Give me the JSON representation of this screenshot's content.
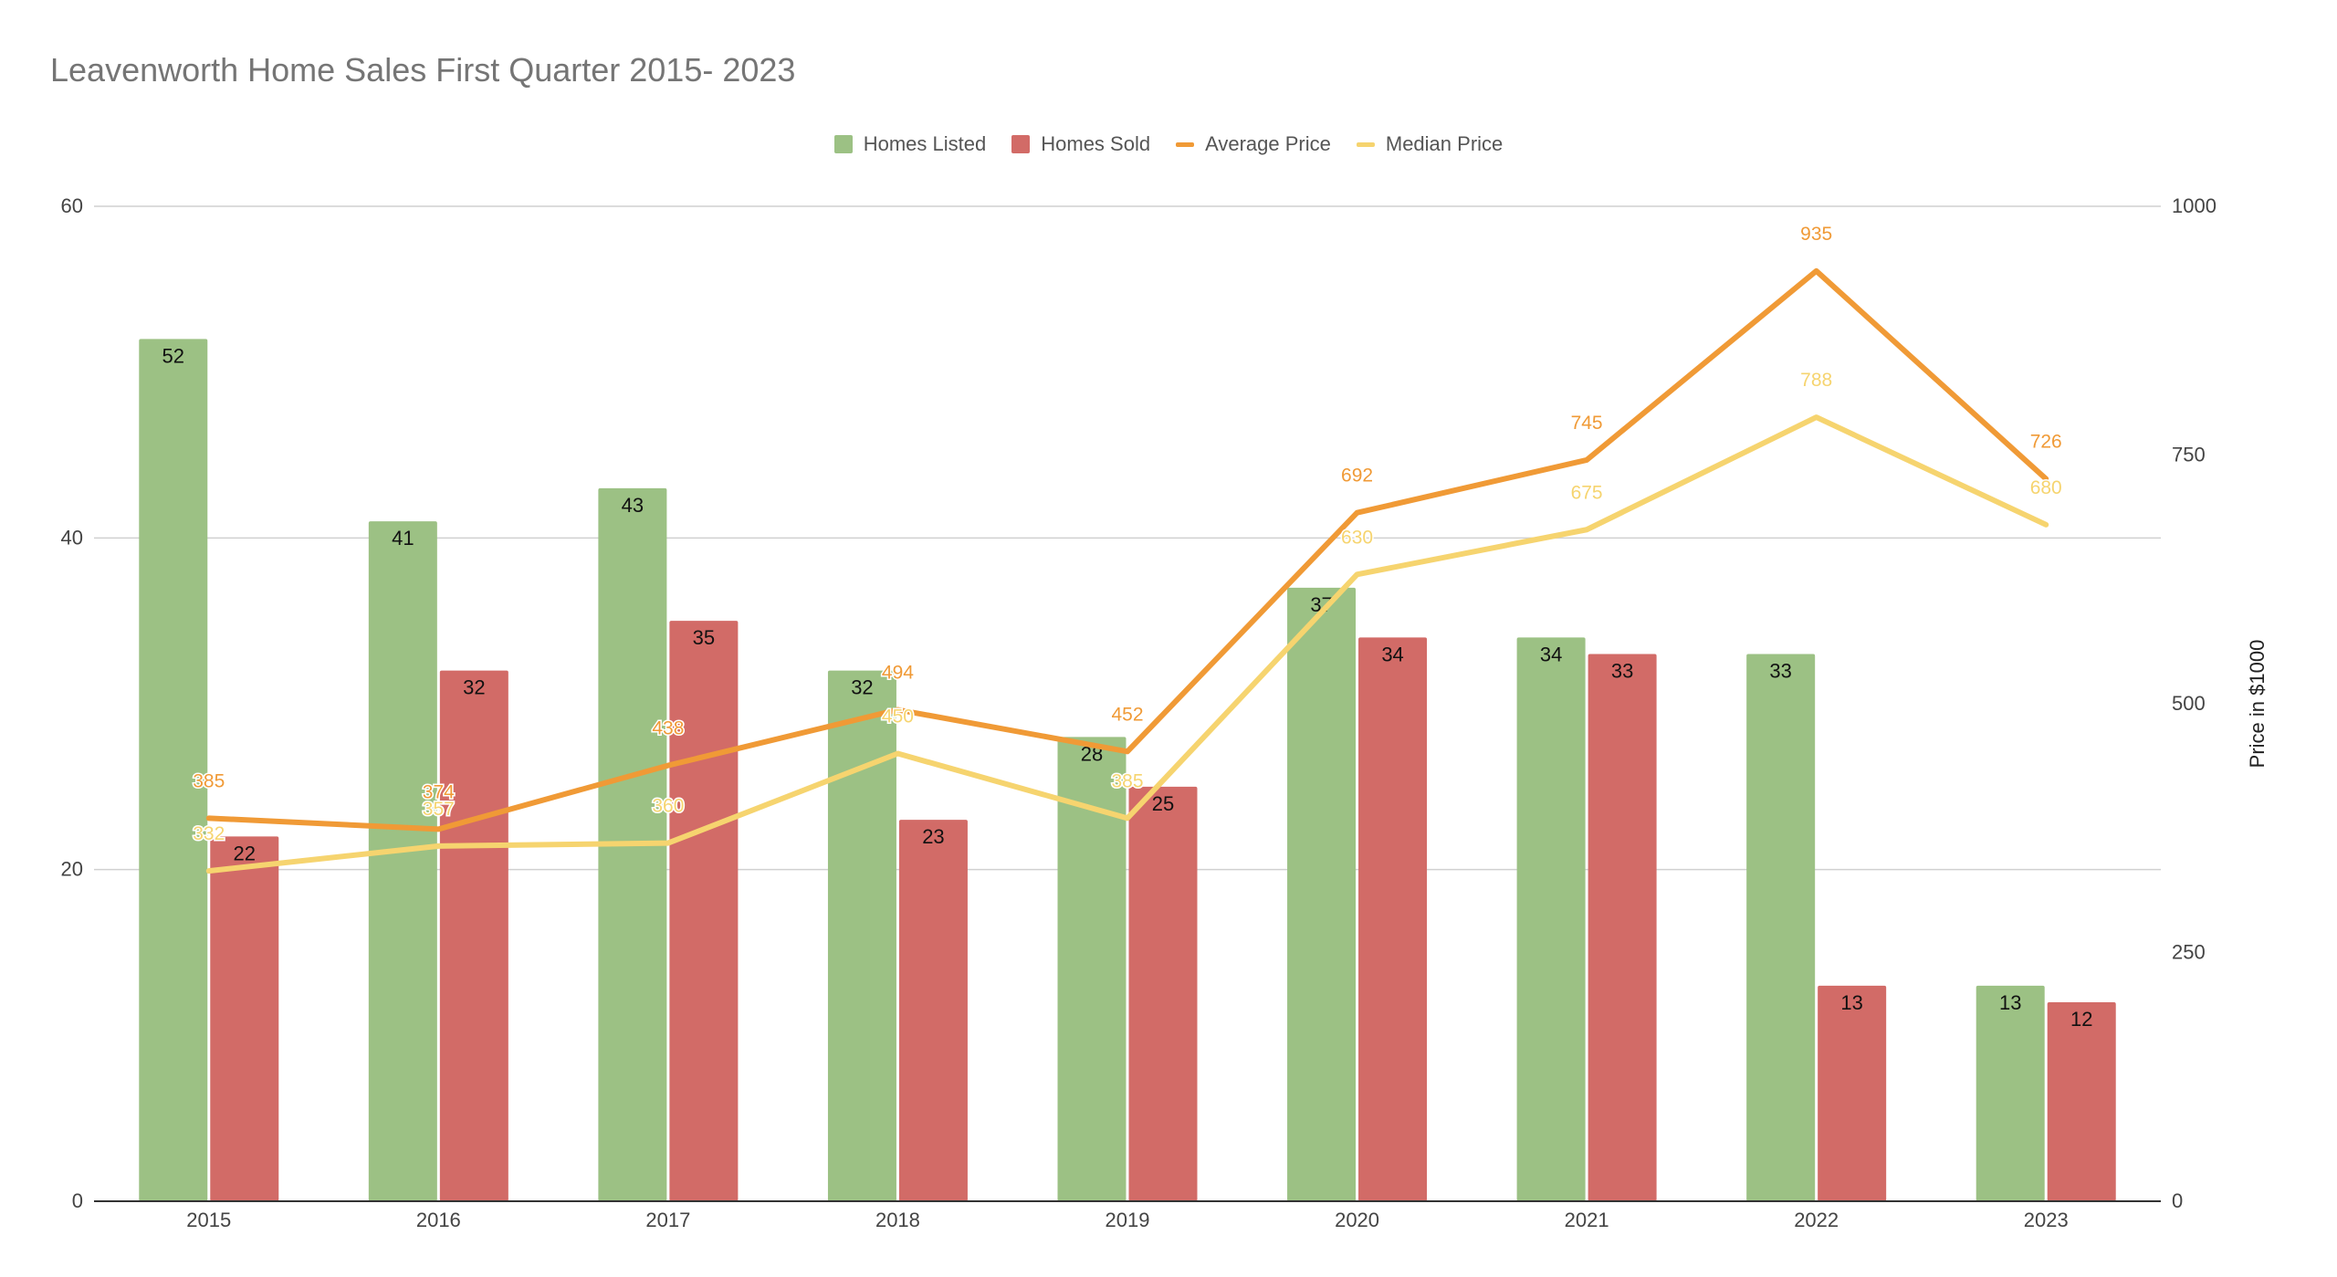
{
  "chart_data": {
    "type": "bar",
    "title": "Leavenworth Home Sales First Quarter 2015- 2023",
    "categories": [
      "2015",
      "2016",
      "2017",
      "2018",
      "2019",
      "2020",
      "2021",
      "2022",
      "2023"
    ],
    "series": [
      {
        "name": "Homes Listed",
        "type": "bar",
        "axis": "left",
        "color": "#9CC184",
        "values": [
          52,
          41,
          43,
          32,
          28,
          37,
          34,
          33,
          13
        ]
      },
      {
        "name": "Homes Sold",
        "type": "bar",
        "axis": "left",
        "color": "#D26B67",
        "values": [
          22,
          32,
          35,
          23,
          25,
          34,
          33,
          13,
          12
        ]
      },
      {
        "name": "Average Price",
        "type": "line",
        "axis": "right",
        "color": "#F09A36",
        "values": [
          385,
          374,
          438,
          494,
          452,
          692,
          745,
          935,
          726
        ]
      },
      {
        "name": "Median Price",
        "type": "line",
        "axis": "right",
        "color": "#F6D46F",
        "values": [
          332,
          357,
          360,
          450,
          385,
          630,
          675,
          788,
          680
        ]
      }
    ],
    "y_left": {
      "label": "",
      "range": [
        0,
        60
      ],
      "ticks": [
        0,
        20,
        40,
        60
      ]
    },
    "y_right": {
      "label": "Price in $1000",
      "range": [
        0,
        1000
      ],
      "ticks": [
        0,
        250,
        500,
        750,
        1000
      ]
    },
    "grid": true,
    "legend_position": "top-center"
  }
}
